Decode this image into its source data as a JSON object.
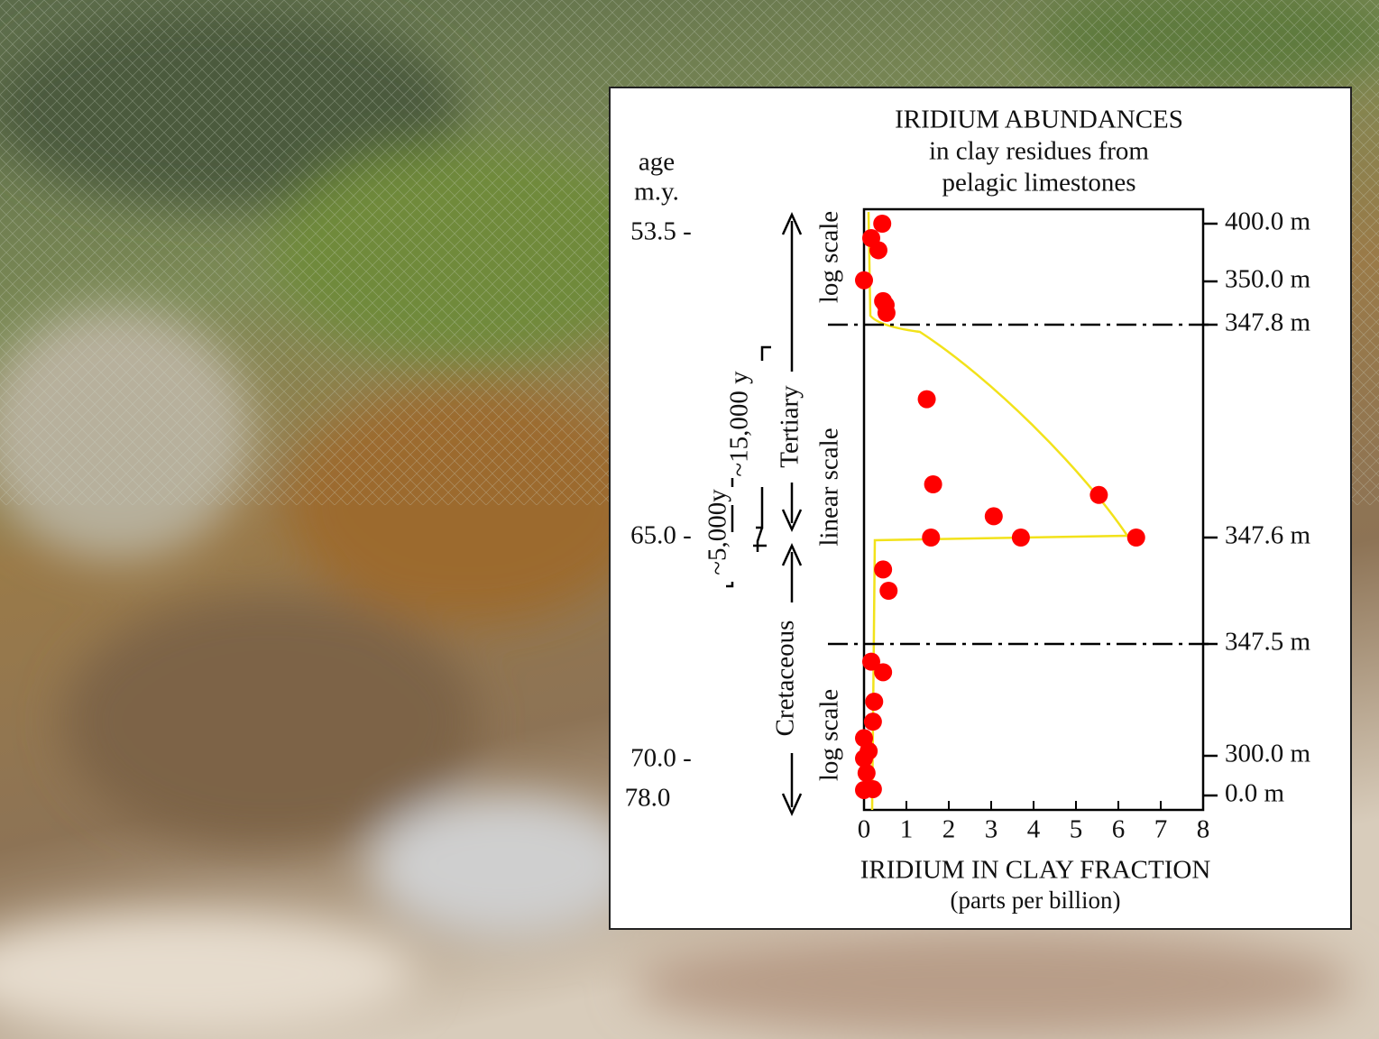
{
  "chart_data": {
    "type": "scatter",
    "title": "IRIDIUM ABUNDANCES",
    "subtitle": [
      "in clay residues from",
      "pelagic limestones"
    ],
    "xlabel": "IRIDIUM IN CLAY FRACTION",
    "xunit": "(parts per billion)",
    "xlim": [
      0,
      8
    ],
    "xticks": [
      0,
      1,
      2,
      3,
      4,
      5,
      6,
      7,
      8
    ],
    "ylim": [
      0,
      400
    ],
    "yticks": [
      {
        "value": 400,
        "label": "400.0 m"
      },
      {
        "value": 350,
        "label": "350.0 m"
      },
      {
        "value": 347.8,
        "label": "347.8 m"
      },
      {
        "value": 347.6,
        "label": "347.6 m"
      },
      {
        "value": 347.5,
        "label": "347.5 m"
      },
      {
        "value": 300,
        "label": "300.0 m"
      },
      {
        "value": 0,
        "label": "0.0 m"
      }
    ],
    "boundaries": [
      2,
      4
    ],
    "color": "#ff0000",
    "x": [
      0.43,
      0.17,
      0.34,
      0,
      0.45,
      0.51,
      0.53,
      1.48,
      1.63,
      5.54,
      3.06,
      3.7,
      1.58,
      6.42,
      0.45,
      0.58,
      0.17,
      0.45,
      0.24,
      0.21,
      0,
      0.11,
      0,
      0.06,
      0.21,
      0
    ],
    "values": [
      400,
      387.5,
      377,
      351,
      349.0,
      348.8,
      348.4,
      347.73,
      347.65,
      347.64,
      347.62,
      347.6,
      347.6,
      347.6,
      347.57,
      347.55,
      340,
      335.5,
      323,
      314.5,
      307.5,
      302,
      280,
      170,
      48,
      41
    ],
    "annotations": [
      "age",
      "m.y.",
      "53.5 -",
      "65.0 -",
      "70.0 -",
      "78.0",
      "log scale",
      "linear scale",
      "log scale",
      "Tertiary",
      "Cretaceous",
      "~15,000 y",
      "~5,000y"
    ]
  }
}
